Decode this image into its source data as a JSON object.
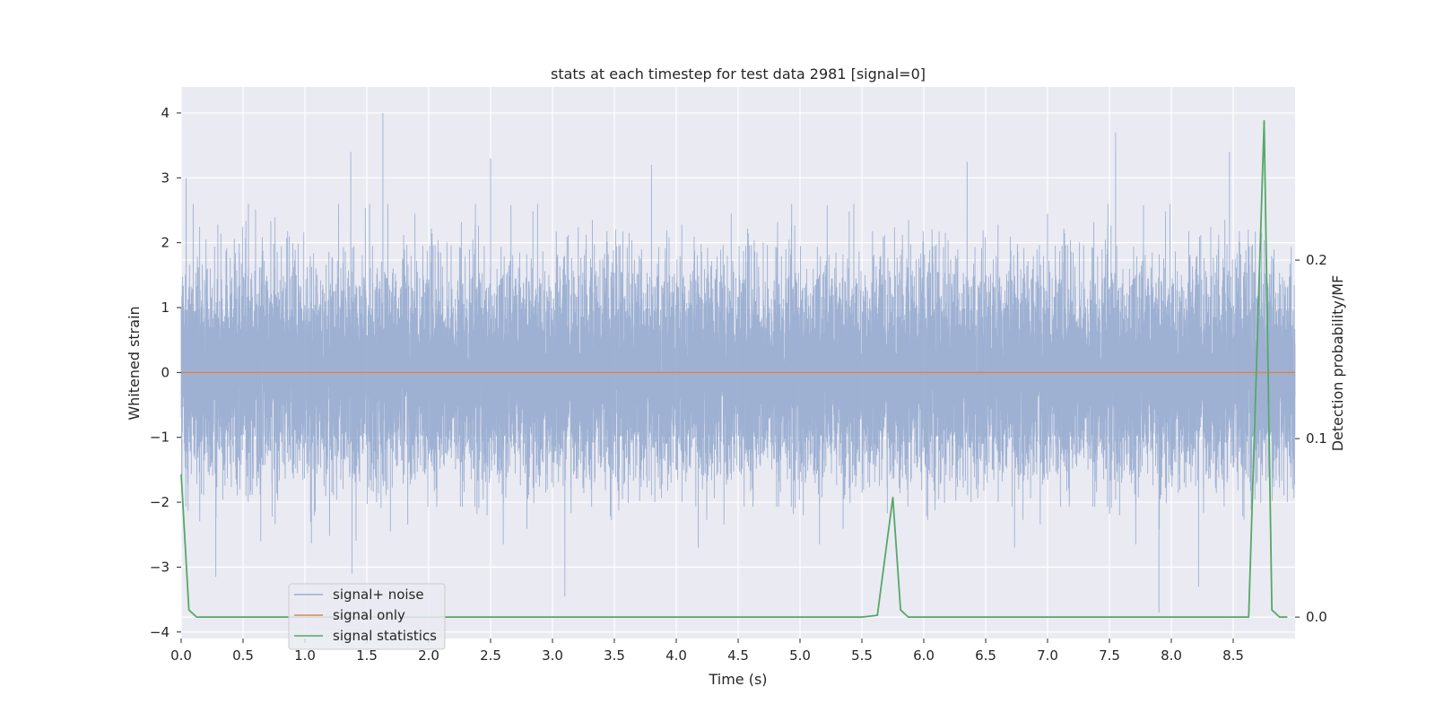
{
  "chart_data": {
    "type": "line",
    "title": "stats at each timestep for test data 2981 [signal=0]",
    "xlabel": "Time (s)",
    "ylabel": "Whitened strain",
    "y2label": "Detection probability/MF",
    "xlim": [
      0,
      9
    ],
    "ylim": [
      -4.1,
      4.4
    ],
    "y2lim": [
      -0.012,
      0.297
    ],
    "x_ticks": [
      "0.0",
      "0.5",
      "1.0",
      "1.5",
      "2.0",
      "2.5",
      "3.0",
      "3.5",
      "4.0",
      "4.5",
      "5.0",
      "5.5",
      "6.0",
      "6.5",
      "7.0",
      "7.5",
      "8.0",
      "8.5"
    ],
    "y_ticks": [
      "4",
      "3",
      "2",
      "1",
      "0",
      "−1",
      "−2",
      "−3",
      "−4"
    ],
    "y2_ticks": [
      "0.2",
      "0.1",
      "0.0"
    ],
    "grid": true,
    "legend_position": "lower-left",
    "series": [
      {
        "name": "signal+ noise",
        "axis": "left",
        "color": "#9aaed1",
        "sample_rate_hz": 2048,
        "band_min": -1.9,
        "band_max": 1.8,
        "notable_peaks": [
          {
            "x": 0.04,
            "y": 3.0
          },
          {
            "x": 1.37,
            "y": 3.4
          },
          {
            "x": 1.63,
            "y": 4.0
          },
          {
            "x": 2.5,
            "y": 3.3
          },
          {
            "x": 3.8,
            "y": 3.2
          },
          {
            "x": 6.35,
            "y": 3.25
          },
          {
            "x": 7.55,
            "y": 3.7
          },
          {
            "x": 8.47,
            "y": 3.4
          }
        ],
        "notable_troughs": [
          {
            "x": 0.28,
            "y": -3.15
          },
          {
            "x": 1.38,
            "y": -3.1
          },
          {
            "x": 3.1,
            "y": -3.45
          },
          {
            "x": 7.9,
            "y": -3.7
          },
          {
            "x": 8.22,
            "y": -3.3
          }
        ]
      },
      {
        "name": "signal only",
        "axis": "left",
        "color": "#dd8452",
        "x": [
          0,
          9
        ],
        "y": [
          0,
          0
        ]
      },
      {
        "name": "signal statistics",
        "axis": "right",
        "color": "#55a868",
        "x": [
          0,
          0.0625,
          0.125,
          0.1875,
          5.5,
          5.625,
          5.75,
          5.8125,
          5.875,
          8.625,
          8.75,
          8.8125,
          8.875,
          8.9375
        ],
        "y": [
          0.08,
          0.004,
          0.0,
          0.0,
          0.0,
          0.001,
          0.067,
          0.004,
          0.0,
          0.0,
          0.278,
          0.004,
          0.0,
          0.0
        ]
      }
    ]
  }
}
